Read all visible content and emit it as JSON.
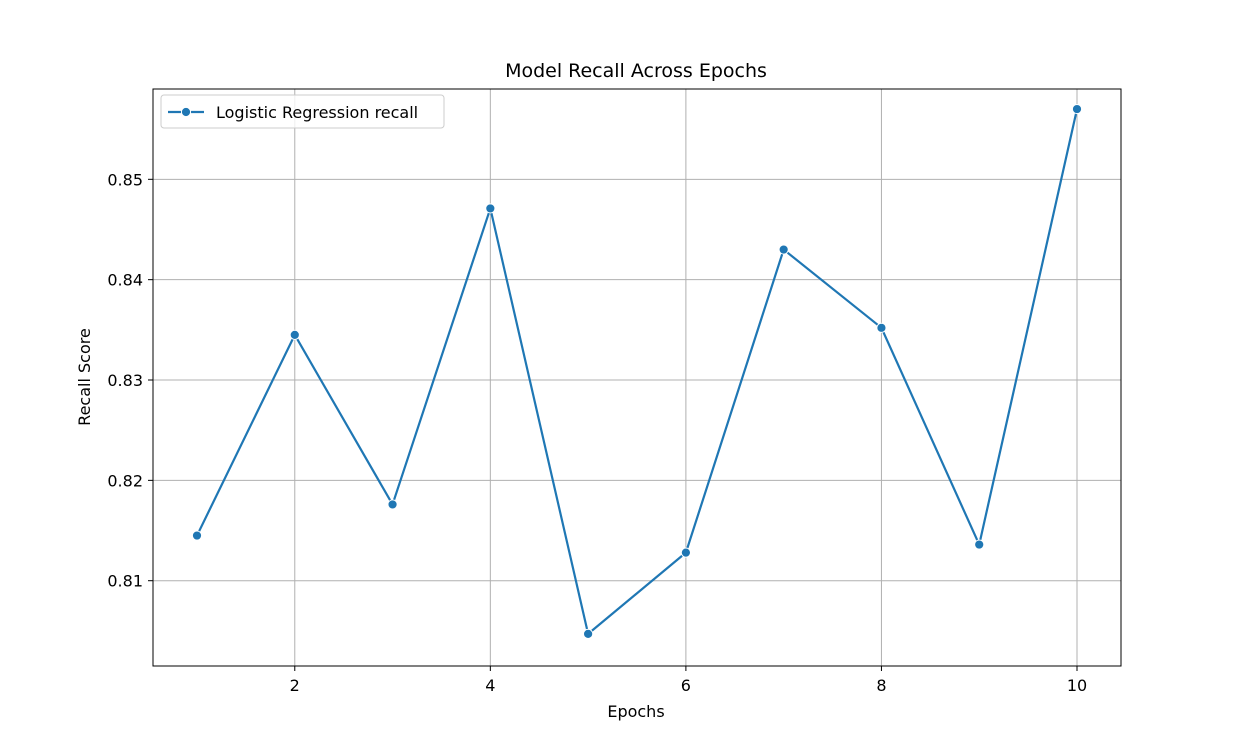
{
  "chart_data": {
    "type": "line",
    "title": "Model Recall Across Epochs",
    "xlabel": "Epochs",
    "ylabel": "Recall Score",
    "xlim": [
      0.55,
      10.45
    ],
    "ylim": [
      0.8015,
      0.859
    ],
    "xticks": [
      2,
      4,
      6,
      8,
      10
    ],
    "yticks": [
      0.81,
      0.82,
      0.83,
      0.84,
      0.85
    ],
    "ytick_labels": [
      "0.81",
      "0.82",
      "0.83",
      "0.84",
      "0.85"
    ],
    "grid": true,
    "legend_position": "top-left",
    "series": [
      {
        "name": "Logistic Regression recall",
        "color": "#1f77b4",
        "marker": "circle",
        "x": [
          1,
          2,
          3,
          4,
          5,
          6,
          7,
          8,
          9,
          10
        ],
        "values": [
          0.8145,
          0.8345,
          0.8176,
          0.8471,
          0.8047,
          0.8128,
          0.843,
          0.8352,
          0.8136,
          0.857
        ]
      }
    ]
  }
}
